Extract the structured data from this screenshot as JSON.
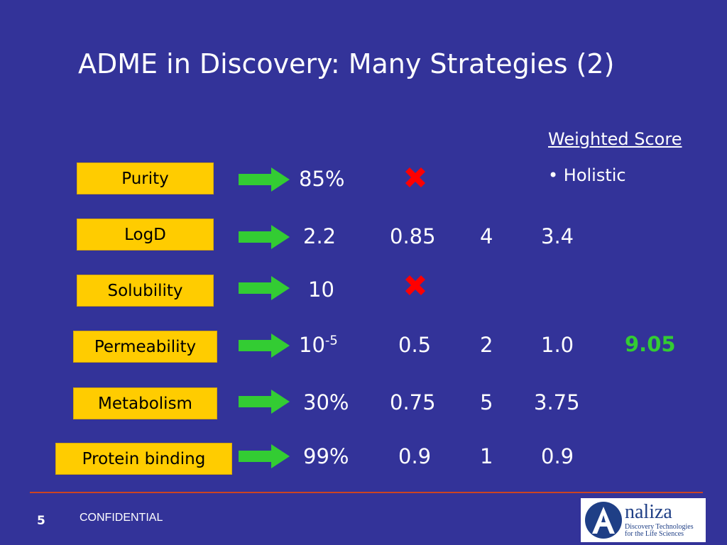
{
  "title": "ADME in Discovery: Many Strategies (2)",
  "weighted_score": {
    "heading": "Weighted Score",
    "bullet": "• Holistic"
  },
  "rows": [
    {
      "label": "Purity",
      "value": "85%",
      "rejected": true
    },
    {
      "label": "LogD",
      "value": "2.2",
      "weight": "0.85",
      "rank": "4",
      "product": "3.4"
    },
    {
      "label": "Solubility",
      "value": "10",
      "rejected": true
    },
    {
      "label": "Permeability",
      "value_base": "10",
      "value_exp": "-5",
      "weight": "0.5",
      "rank": "2",
      "product": "1.0"
    },
    {
      "label": "Metabolism",
      "value": "30%",
      "weight": "0.75",
      "rank": "5",
      "product": "3.75"
    },
    {
      "label": "Protein binding",
      "value": "99%",
      "weight": "0.9",
      "rank": "1",
      "product": "0.9"
    }
  ],
  "total_score": "9.05",
  "footer": {
    "page_number": "5",
    "confidential": "CONFIDENTIAL"
  },
  "logo": {
    "brand": "naliza",
    "tagline_1": "Discovery Technologies",
    "tagline_2": "for the Life Sciences"
  },
  "colors": {
    "background": "#333399",
    "label_fill": "#ffcc00",
    "arrow": "#33cc33",
    "reject_mark": "#ff0000",
    "score": "#33cc33"
  },
  "icons": {
    "arrow": "right-arrow-icon",
    "reject": "red-x-icon",
    "logo": "analiza-logo-icon"
  }
}
